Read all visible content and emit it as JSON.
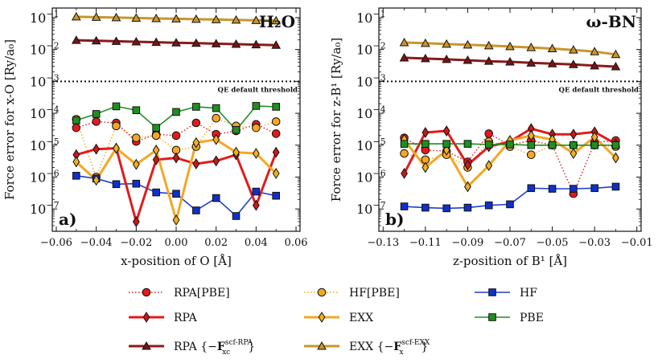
{
  "chart_data": [
    {
      "type": "line",
      "panel_label": "a)",
      "title": "H₂O",
      "xlabel": "x-position of O [Å]",
      "ylabel": "Force error for x-O [Ry/a₀]",
      "xlim": [
        -0.062,
        0.062
      ],
      "ylim_log10": [
        -7.7,
        -0.7
      ],
      "xticks": [
        -0.06,
        -0.04,
        -0.02,
        0.0,
        0.02,
        0.04,
        0.06
      ],
      "xtick_labels": [
        "−0.06",
        "−0.04",
        "−0.02",
        "0.00",
        "0.02",
        "0.04",
        "0.06"
      ],
      "ytick_exps": [
        -1,
        -2,
        -3,
        -4,
        -5,
        -6,
        -7
      ],
      "threshold": {
        "value": 0.001,
        "label": "QE default threshold"
      },
      "x": [
        -0.05,
        -0.04,
        -0.03,
        -0.02,
        -0.01,
        0.0,
        0.01,
        0.02,
        0.03,
        0.04,
        0.05
      ],
      "series": [
        {
          "name": "RPA[PBE]",
          "values": [
            3.5e-05,
            5.5e-05,
            5e-05,
            1.3e-05,
            2.2e-05,
            2e-05,
            5e-05,
            2.2e-05,
            2.8e-05,
            4.5e-05,
            2.3e-05
          ]
        },
        {
          "name": "HF[PBE]",
          "values": [
            6.5e-05,
            1e-06,
            4e-05,
            1.7e-05,
            2e-05,
            7e-06,
            9e-06,
            7e-05,
            4e-05,
            3.5e-05,
            5.5e-05
          ]
        },
        {
          "name": "HF",
          "values": [
            1.1e-06,
            9e-07,
            6e-07,
            6.2e-07,
            3.3e-07,
            3e-07,
            9e-08,
            2.2e-07,
            6e-08,
            3.5e-07,
            2.6e-07
          ]
        },
        {
          "name": "RPA",
          "values": [
            5e-06,
            7.5e-06,
            8e-06,
            4e-08,
            3.5e-06,
            4e-06,
            2.6e-06,
            3.2e-06,
            5e-06,
            1.3e-07,
            6e-06
          ]
        },
        {
          "name": "EXX",
          "values": [
            3e-06,
            8e-07,
            8e-06,
            2.5e-06,
            7e-06,
            4.5e-08,
            1.2e-05,
            1.5e-05,
            6e-06,
            5.5e-06,
            1.3e-06
          ]
        },
        {
          "name": "PBE",
          "values": [
            6e-05,
            9.5e-05,
            0.000165,
            0.000125,
            3.5e-05,
            0.00011,
            0.00016,
            0.000145,
            3e-05,
            0.00017,
            0.00016
          ]
        },
        {
          "name": "RPA {−F_xc^scf-RPA}",
          "values": [
            0.0195,
            0.0188,
            0.0181,
            0.0175,
            0.0169,
            0.0163,
            0.0158,
            0.0152,
            0.0147,
            0.0142,
            0.0137
          ]
        },
        {
          "name": "EXX {−F_x^scf-EXX}",
          "values": [
            0.106,
            0.103,
            0.1,
            0.097,
            0.094,
            0.092,
            0.089,
            0.087,
            0.084,
            0.082,
            0.08
          ]
        }
      ]
    },
    {
      "type": "line",
      "panel_label": "b)",
      "title": "ω-BN",
      "xlabel": "z-position of B¹ [Å]",
      "ylabel": "Force error for z-B¹ [Ry/a₀]",
      "xlim": [
        -0.132,
        -0.008
      ],
      "ylim_log10": [
        -7.7,
        -0.7
      ],
      "xticks": [
        -0.13,
        -0.11,
        -0.09,
        -0.07,
        -0.05,
        -0.03,
        -0.01
      ],
      "xtick_labels": [
        "−0.13",
        "−0.11",
        "−0.09",
        "−0.07",
        "−0.05",
        "−0.03",
        "−0.01"
      ],
      "ytick_exps": [
        -1,
        -2,
        -3,
        -4,
        -5,
        -6,
        -7
      ],
      "threshold": {
        "value": 0.001,
        "label": "QE default threshold"
      },
      "x": [
        -0.12,
        -0.11,
        -0.1,
        -0.09,
        -0.08,
        -0.07,
        -0.06,
        -0.05,
        -0.04,
        -0.03,
        -0.02
      ],
      "series": [
        {
          "name": "RPA[PBE]",
          "values": [
            1.7e-05,
            7e-06,
            6.5e-06,
            3e-06,
            2.3e-05,
            1e-05,
            1.4e-05,
            1e-05,
            3e-07,
            1.2e-05,
            1.4e-05
          ]
        },
        {
          "name": "HF[PBE]",
          "values": [
            5.5e-06,
            3.5e-06,
            5e-06,
            2e-06,
            1.3e-05,
            9e-06,
            5e-06,
            1e-05,
            1e-05,
            1e-05,
            9e-06
          ]
        },
        {
          "name": "HF",
          "values": [
            1.2e-07,
            1.1e-07,
            1.05e-07,
            1.1e-07,
            1.3e-07,
            1.4e-07,
            4.5e-07,
            4.3e-07,
            4.3e-07,
            4.5e-07,
            5e-07
          ]
        },
        {
          "name": "RPA",
          "values": [
            1.3e-06,
            2.5e-05,
            2.8e-05,
            2.4e-06,
            9e-06,
            1.3e-05,
            3.3e-05,
            2.2e-05,
            2.2e-05,
            2.6e-05,
            1.1e-05
          ]
        },
        {
          "name": "EXX",
          "values": [
            1.5e-05,
            2e-06,
            7e-06,
            5e-07,
            2.3e-06,
            1.4e-05,
            2e-05,
            1.5e-05,
            5.5e-06,
            1.8e-05,
            4e-06
          ]
        },
        {
          "name": "PBE",
          "values": [
            1.1e-05,
            1.1e-05,
            1.1e-05,
            1.1e-05,
            1.05e-05,
            1.05e-05,
            1e-05,
            1e-05,
            1e-05,
            1e-05,
            1e-05
          ]
        },
        {
          "name": "RPA {−F_xc^scf-RPA}",
          "values": [
            0.0055,
            0.0052,
            0.0049,
            0.0046,
            0.0043,
            0.0041,
            0.0038,
            0.0036,
            0.0034,
            0.0031,
            0.0029
          ]
        },
        {
          "name": "EXX {−F_x^scf-EXX}",
          "values": [
            0.0165,
            0.0157,
            0.0148,
            0.014,
            0.0132,
            0.0124,
            0.0116,
            0.0107,
            0.0097,
            0.0086,
            0.007
          ]
        }
      ]
    }
  ],
  "legend": [
    {
      "key": "RPA[PBE]",
      "label": "RPA[PBE]",
      "style": "dotted",
      "marker": "circle",
      "color": "#e31a1c",
      "fill": "#e31a1c"
    },
    {
      "key": "HF[PBE]",
      "label": "HF[PBE]",
      "style": "dotted",
      "marker": "circle",
      "color": "#f5a623",
      "fill": "#f5a623"
    },
    {
      "key": "HF",
      "label": "HF",
      "style": "solid",
      "marker": "square",
      "color": "#1f3fd1",
      "fill": "#1030c8"
    },
    {
      "key": "RPA",
      "label": "RPA",
      "style": "thick",
      "marker": "diamond",
      "color": "#e31a1c",
      "fill": "#c81818"
    },
    {
      "key": "EXX",
      "label": "EXX",
      "style": "thick",
      "marker": "diamond",
      "color": "#f5a623",
      "fill": "#f0b020"
    },
    {
      "key": "PBE",
      "label": "PBE",
      "style": "solid",
      "marker": "square",
      "color": "#1f8f1f",
      "fill": "#1f8f1f"
    },
    {
      "key": "RPA {−F_xc^scf-RPA}",
      "label": "RPA",
      "brace_open": "{−",
      "bold_sym": "F",
      "sub": "xc",
      "sup": "scf-RPA",
      "brace_close": "}",
      "style": "thick",
      "marker": "triangle",
      "color": "#8b1a1a",
      "fill": "#7a1414"
    },
    {
      "key": "EXX {−F_x^scf-EXX}",
      "label": "EXX",
      "brace_open": "{−",
      "bold_sym": "F",
      "sub": "x",
      "sup": "scf-EXX",
      "brace_close": "}",
      "style": "thick",
      "marker": "triangle",
      "color": "#c8962a",
      "fill": "#c8962a"
    }
  ]
}
